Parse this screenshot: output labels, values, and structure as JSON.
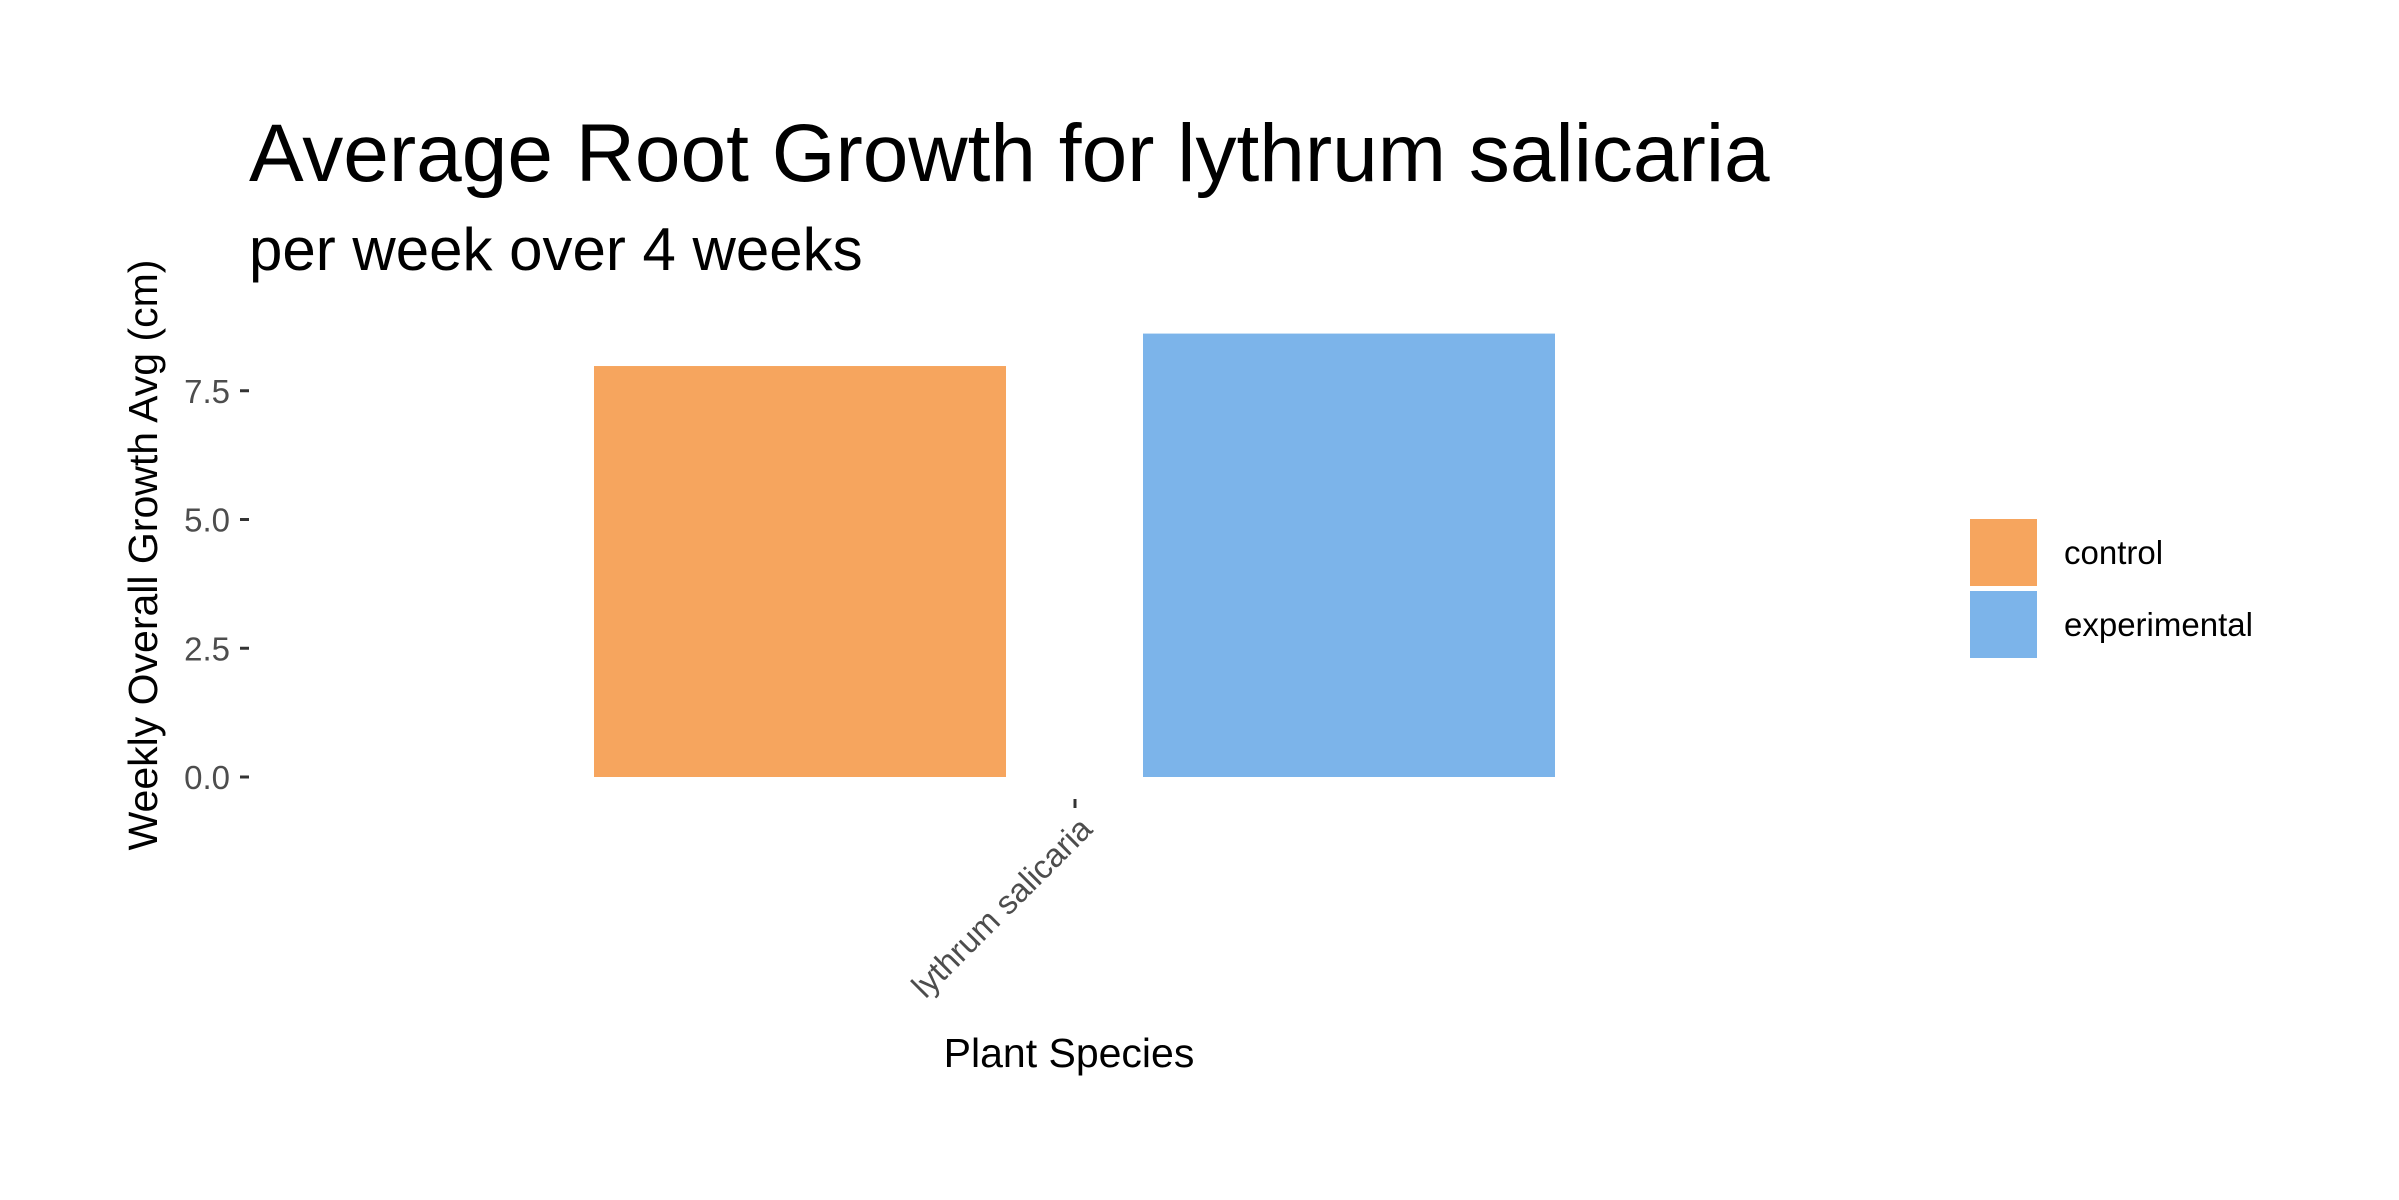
{
  "chart_data": {
    "type": "bar",
    "title": "Average Root Growth for lythrum salicaria",
    "subtitle": "per week over 4 weeks",
    "xlabel": "Plant Species",
    "ylabel": "Weekly Overall Growth Avg (cm)",
    "categories": [
      "lythrum salicaria"
    ],
    "series": [
      {
        "name": "control",
        "color": "#F6A55E",
        "values": [
          7.98
        ]
      },
      {
        "name": "experimental",
        "color": "#7CB4EA",
        "values": [
          8.61
        ]
      }
    ],
    "ylim": [
      0,
      8.61
    ],
    "yticks": [
      0.0,
      2.5,
      5.0,
      7.5
    ],
    "ytick_labels": [
      "0.0",
      "2.5",
      "5.0",
      "7.5"
    ],
    "grid": false,
    "legend_position": "right"
  }
}
